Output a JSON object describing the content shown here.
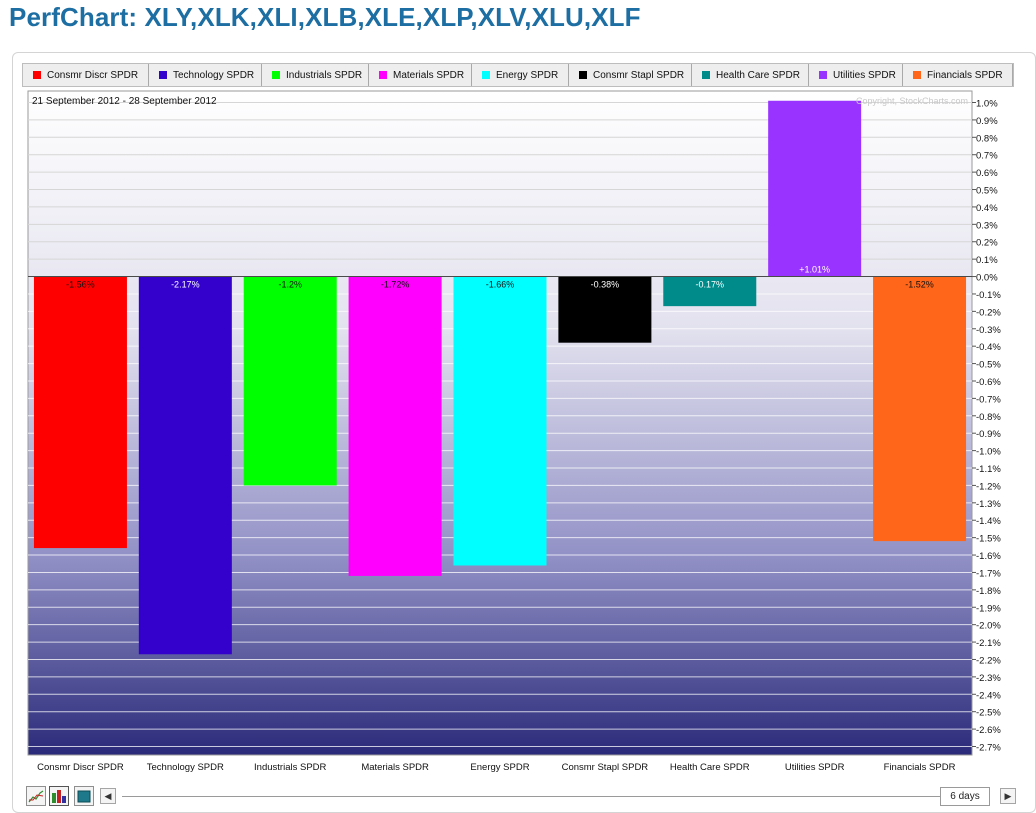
{
  "page": {
    "title": "PerfChart: XLY,XLK,XLI,XLB,XLE,XLP,XLV,XLU,XLF"
  },
  "legend": [
    {
      "label": "Consmr Discr SPDR",
      "color": "#ff0000"
    },
    {
      "label": "Technology SPDR",
      "color": "#3300cc"
    },
    {
      "label": "Industrials SPDR",
      "color": "#00ff00"
    },
    {
      "label": "Materials SPDR",
      "color": "#ff00ff"
    },
    {
      "label": "Energy SPDR",
      "color": "#00ffff"
    },
    {
      "label": "Consmr Stapl SPDR",
      "color": "#000000"
    },
    {
      "label": "Health Care SPDR",
      "color": "#008b8b"
    },
    {
      "label": "Utilities SPDR",
      "color": "#9933ff"
    },
    {
      "label": "Financials SPDR",
      "color": "#ff6619"
    }
  ],
  "chart_data": {
    "type": "bar",
    "date_range": "21 September 2012 - 28 September 2012",
    "copyright": "Copyright, StockCharts.com",
    "categories": [
      "Consmr Discr SPDR",
      "Technology SPDR",
      "Industrials SPDR",
      "Materials SPDR",
      "Energy SPDR",
      "Consmr Stapl SPDR",
      "Health Care SPDR",
      "Utilities SPDR",
      "Financials SPDR"
    ],
    "values": [
      -1.56,
      -2.17,
      -1.2,
      -1.72,
      -1.66,
      -0.38,
      -0.17,
      1.01,
      -1.52
    ],
    "value_labels": [
      "-1.56%",
      "-2.17%",
      "-1.2%",
      "-1.72%",
      "-1.66%",
      "-0.38%",
      "-0.17%",
      "+1.01%",
      "-1.52%"
    ],
    "colors": [
      "#ff0000",
      "#3300cc",
      "#00ff00",
      "#ff00ff",
      "#00ffff",
      "#000000",
      "#008b8b",
      "#9933ff",
      "#ff6619"
    ],
    "y_ticks": [
      "1.0%",
      "0.9%",
      "0.8%",
      "0.7%",
      "0.6%",
      "0.5%",
      "0.4%",
      "0.3%",
      "0.2%",
      "0.1%",
      "0.0%",
      "-0.1%",
      "-0.2%",
      "-0.3%",
      "-0.4%",
      "-0.5%",
      "-0.6%",
      "-0.7%",
      "-0.8%",
      "-0.9%",
      "-1.0%",
      "-1.1%",
      "-1.2%",
      "-1.3%",
      "-1.4%",
      "-1.5%",
      "-1.6%",
      "-1.7%",
      "-1.8%",
      "-1.9%",
      "-2.0%",
      "-2.1%",
      "-2.2%",
      "-2.3%",
      "-2.4%",
      "-2.5%",
      "-2.6%",
      "-2.7%"
    ],
    "ylim": [
      -2.7,
      1.0
    ],
    "axis_position": "right",
    "grid": true
  },
  "controls": {
    "period_label": "6 days",
    "scroll_left_icon": "triangle-left-icon",
    "scroll_right_icon": "triangle-right-icon",
    "tool_icons": [
      "line-chart-icon",
      "histogram-icon",
      "bar-chart-icon"
    ]
  }
}
